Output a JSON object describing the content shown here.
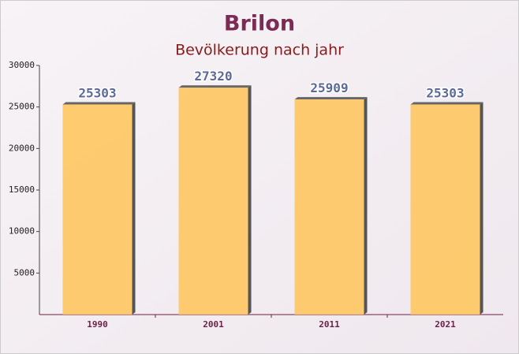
{
  "chart_data": {
    "type": "bar",
    "title": "Brilon",
    "subtitle": "Bevölkerung nach jahr",
    "categories": [
      "1990",
      "2001",
      "2011",
      "2021"
    ],
    "values": [
      25303,
      27320,
      25909,
      25303
    ],
    "color": "#ffc55c",
    "ylim": [
      0,
      30000
    ],
    "yticks": [
      5000,
      10000,
      15000,
      20000,
      25000,
      30000
    ],
    "grid": false
  }
}
